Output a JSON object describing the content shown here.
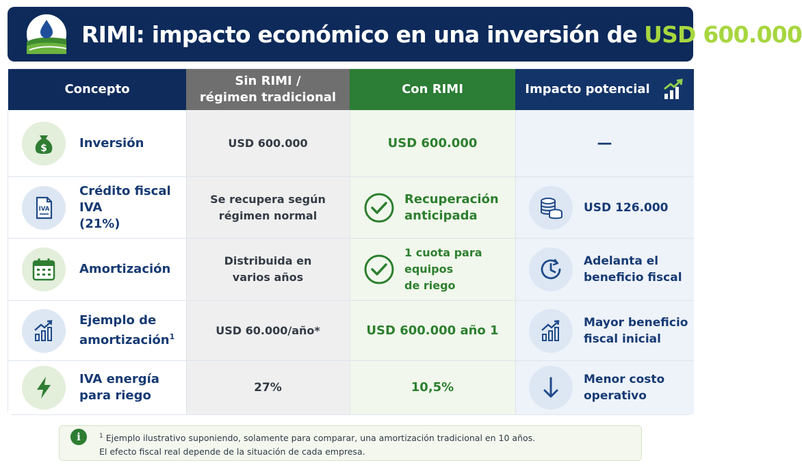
{
  "header": {
    "title": "RIMI: impacto económico en una inversión de",
    "amount": "USD 600.000",
    "logo_icon": "water-drop-field-logo"
  },
  "columns": {
    "concepto": "Concepto",
    "sin_rimi": "Sin RIMI /\nrégimen tradicional",
    "con_rimi": "Con RIMI",
    "impacto": "Impacto potencial",
    "impacto_icon": "growth-chart-icon"
  },
  "rows": [
    {
      "icon": "money-bag-icon",
      "concept": "Inversión",
      "sin_rimi": "USD 600.000",
      "con_rimi": "USD 600.000",
      "impacto": "—"
    },
    {
      "icon": "iva-document-icon",
      "concept": "Crédito fiscal IVA\n(21%)",
      "sin_rimi": "Se recupera según\nrégimen normal",
      "con_rimi": "Recuperación\nanticipada",
      "impacto_icon": "coins-icon",
      "impacto": "USD 126.000"
    },
    {
      "icon": "calendar-icon",
      "concept": "Amortización",
      "sin_rimi": "Distribuida en\nvarios años",
      "con_rimi": "1 cuota para equipos\nde riego",
      "impacto_icon": "clock-icon",
      "impacto": "Adelanta el\nbeneficio fiscal"
    },
    {
      "icon": "bar-chart-up-icon",
      "concept": "Ejemplo de\namortización",
      "concept_sup": "1",
      "sin_rimi": "USD 60.000/año*",
      "con_rimi": "USD 600.000 año 1",
      "impacto_icon": "bar-chart-up-icon",
      "impacto": "Mayor beneficio\nfiscal inicial"
    },
    {
      "icon": "lightning-icon",
      "concept": "IVA energía\npara riego",
      "sin_rimi": "27%",
      "con_rimi": "10,5%",
      "impacto_icon": "arrow-down-icon",
      "impacto": "Menor costo\noperativo"
    }
  ],
  "footnote": {
    "marker": "1",
    "line1": " Ejemplo ilustrativo suponiendo, solamente para comparar, una amortización tradicional en 10 años.",
    "line2": "El efecto fiscal real depende de la situación de cada empresa."
  },
  "colors": {
    "navy": "#0d2a5a",
    "green": "#2c7d35",
    "gray": "#6f6f6f",
    "lime": "#a7d63f"
  }
}
